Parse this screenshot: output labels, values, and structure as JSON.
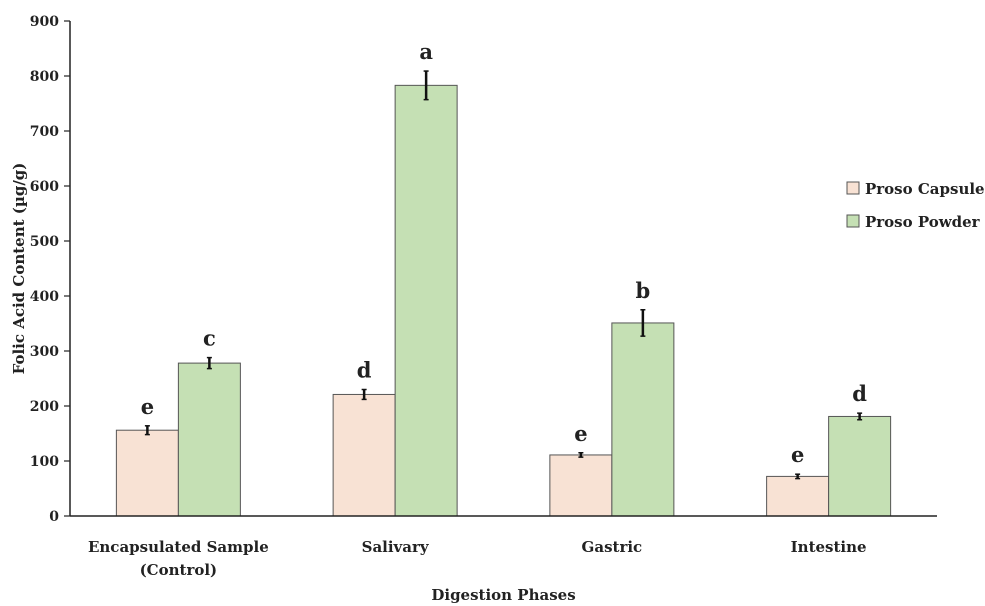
{
  "chart_data": {
    "type": "bar",
    "categories": [
      [
        "Encapsulated Sample",
        "(Control)"
      ],
      [
        "Salivary"
      ],
      [
        "Gastric"
      ],
      [
        "Intestine"
      ]
    ],
    "series": [
      {
        "name": "Proso Capsule",
        "color": "#f8e2d4",
        "values": [
          156,
          221,
          111,
          72
        ],
        "errors": [
          8,
          9,
          4,
          4
        ],
        "labels": [
          "e",
          "d",
          "e",
          "e"
        ]
      },
      {
        "name": "Proso Powder",
        "color": "#c5e0b4",
        "values": [
          278,
          783,
          351,
          181
        ],
        "errors": [
          10,
          26,
          24,
          6
        ],
        "labels": [
          "c",
          "a",
          "b",
          "d"
        ]
      }
    ],
    "xlabel": "Digestion Phases",
    "ylabel": "Folic Acid Content (µg/g)",
    "ylim": [
      0,
      900
    ],
    "yticks": [
      0,
      100,
      200,
      300,
      400,
      500,
      600,
      700,
      800,
      900
    ],
    "grid": false,
    "legend_position": "right"
  }
}
